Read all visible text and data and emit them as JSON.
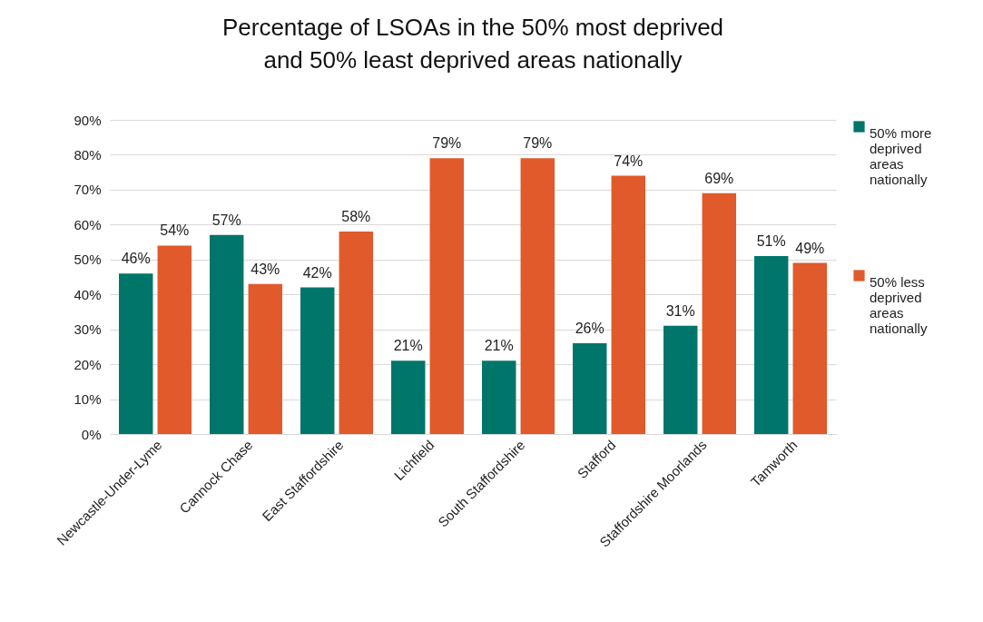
{
  "chart_data": {
    "type": "bar",
    "title": "Percentage of LSOAs in the 50% most deprived and 50% least deprived areas nationally",
    "categories": [
      "Newcastle-Under-Lyme",
      "Cannock Chase",
      "East Staffordshire",
      "Lichfield",
      "South Staffordshire",
      "Stafford",
      "Staffordshire Moorlands",
      "Tamworth"
    ],
    "series": [
      {
        "name": "50% more deprived areas nationally",
        "color": "#00756a",
        "values": [
          46,
          57,
          42,
          21,
          21,
          26,
          31,
          51
        ],
        "value_labels": [
          "46%",
          "57%",
          "42%",
          "21%",
          "21%",
          "26%",
          "31%",
          "51%"
        ]
      },
      {
        "name": "50% less deprived areas nationally",
        "color": "#e05a2b",
        "values": [
          54,
          43,
          58,
          79,
          79,
          74,
          69,
          49
        ],
        "value_labels": [
          "54%",
          "43%",
          "58%",
          "79%",
          "79%",
          "74%",
          "69%",
          "49%"
        ]
      }
    ],
    "ylim": [
      0,
      90
    ],
    "yticks": [
      {
        "value": 0,
        "label": "0%"
      },
      {
        "value": 10,
        "label": "10%"
      },
      {
        "value": 20,
        "label": "20%"
      },
      {
        "value": 30,
        "label": "30%"
      },
      {
        "value": 40,
        "label": "40%"
      },
      {
        "value": 50,
        "label": "50%"
      },
      {
        "value": 60,
        "label": "60%"
      },
      {
        "value": 70,
        "label": "70%"
      },
      {
        "value": 80,
        "label": "80%"
      },
      {
        "value": 90,
        "label": "90%"
      }
    ],
    "grid": "y",
    "legend": "right"
  }
}
